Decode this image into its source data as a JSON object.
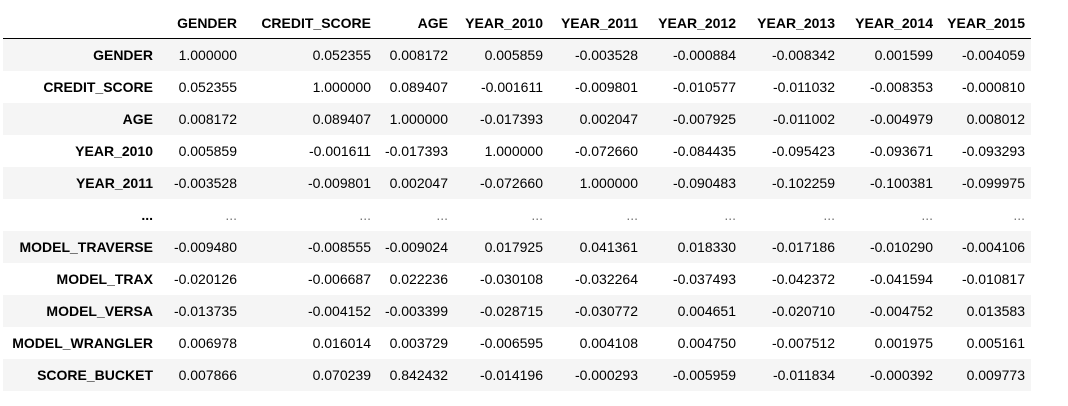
{
  "table": {
    "columns": [
      "GENDER",
      "CREDIT_SCORE",
      "AGE",
      "YEAR_2010",
      "YEAR_2011",
      "YEAR_2012",
      "YEAR_2013",
      "YEAR_2014",
      "YEAR_2015"
    ],
    "rows": [
      {
        "label": "GENDER",
        "values": [
          "1.000000",
          "0.052355",
          "0.008172",
          "0.005859",
          "-0.003528",
          "-0.000884",
          "-0.008342",
          "0.001599",
          "-0.004059"
        ]
      },
      {
        "label": "CREDIT_SCORE",
        "values": [
          "0.052355",
          "1.000000",
          "0.089407",
          "-0.001611",
          "-0.009801",
          "-0.010577",
          "-0.011032",
          "-0.008353",
          "-0.000810"
        ]
      },
      {
        "label": "AGE",
        "values": [
          "0.008172",
          "0.089407",
          "1.000000",
          "-0.017393",
          "0.002047",
          "-0.007925",
          "-0.011002",
          "-0.004979",
          "0.008012"
        ]
      },
      {
        "label": "YEAR_2010",
        "values": [
          "0.005859",
          "-0.001611",
          "-0.017393",
          "1.000000",
          "-0.072660",
          "-0.084435",
          "-0.095423",
          "-0.093671",
          "-0.093293"
        ]
      },
      {
        "label": "YEAR_2011",
        "values": [
          "-0.003528",
          "-0.009801",
          "0.002047",
          "-0.072660",
          "1.000000",
          "-0.090483",
          "-0.102259",
          "-0.100381",
          "-0.099975"
        ]
      },
      {
        "label": "...",
        "values": [
          "...",
          "...",
          "...",
          "...",
          "...",
          "...",
          "...",
          "...",
          "..."
        ]
      },
      {
        "label": "MODEL_TRAVERSE",
        "values": [
          "-0.009480",
          "-0.008555",
          "-0.009024",
          "0.017925",
          "0.041361",
          "0.018330",
          "-0.017186",
          "-0.010290",
          "-0.004106"
        ]
      },
      {
        "label": "MODEL_TRAX",
        "values": [
          "-0.020126",
          "-0.006687",
          "0.022236",
          "-0.030108",
          "-0.032264",
          "-0.037493",
          "-0.042372",
          "-0.041594",
          "-0.010817"
        ]
      },
      {
        "label": "MODEL_VERSA",
        "values": [
          "-0.013735",
          "-0.004152",
          "-0.003399",
          "-0.028715",
          "-0.030772",
          "0.004651",
          "-0.020710",
          "-0.004752",
          "0.013583"
        ]
      },
      {
        "label": "MODEL_WRANGLER",
        "values": [
          "0.006978",
          "0.016014",
          "0.003729",
          "-0.006595",
          "0.004108",
          "0.004750",
          "-0.007512",
          "0.001975",
          "0.005161"
        ]
      },
      {
        "label": "SCORE_BUCKET",
        "values": [
          "0.007866",
          "0.070239",
          "0.842432",
          "-0.014196",
          "-0.000293",
          "-0.005959",
          "-0.011834",
          "-0.000392",
          "0.009773"
        ]
      }
    ]
  },
  "colors": {
    "row_stripe": "#f5f5f5",
    "header_rule": "#000000",
    "text": "#000000"
  }
}
